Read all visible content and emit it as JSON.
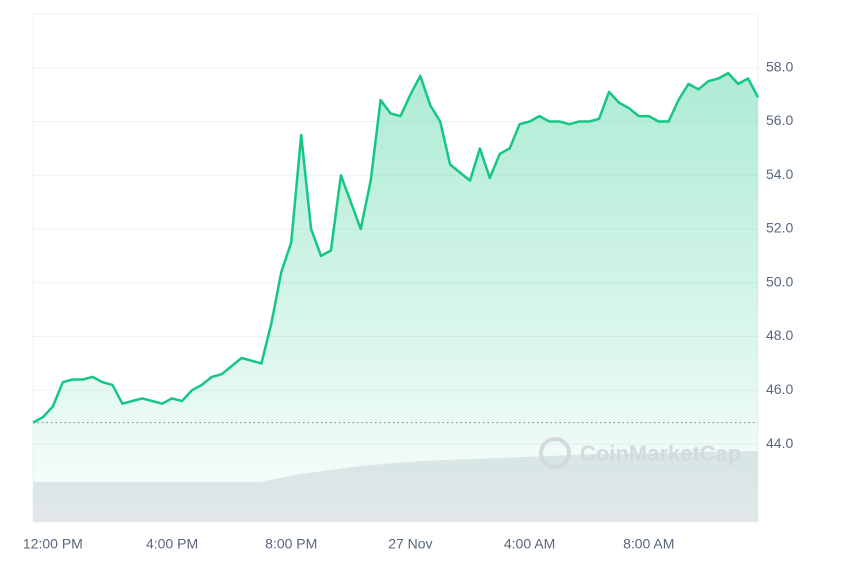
{
  "chart_data": {
    "type": "line",
    "watermark": "CoinMarketCap",
    "categories": [
      null,
      null,
      "12:00 PM",
      null,
      null,
      null,
      null,
      null,
      null,
      null,
      null,
      null,
      null,
      null,
      "4:00 PM",
      null,
      null,
      null,
      null,
      null,
      null,
      null,
      null,
      null,
      null,
      null,
      "8:00 PM",
      null,
      null,
      null,
      null,
      null,
      null,
      null,
      null,
      null,
      null,
      null,
      "27 Nov",
      null,
      null,
      null,
      null,
      null,
      null,
      null,
      null,
      null,
      null,
      null,
      "4:00 AM",
      null,
      null,
      null,
      null,
      null,
      null,
      null,
      null,
      null,
      null,
      null,
      "8:00 AM",
      null,
      null,
      null,
      null,
      null,
      null,
      null,
      null,
      null,
      null,
      null
    ],
    "series": [
      {
        "color": "#16c784",
        "values": [
          44.8,
          45.0,
          45.4,
          46.3,
          46.4,
          46.4,
          46.5,
          46.3,
          46.2,
          45.5,
          45.6,
          45.7,
          45.6,
          45.5,
          45.7,
          45.6,
          46.0,
          46.2,
          46.5,
          46.6,
          46.9,
          47.2,
          47.1,
          47.0,
          48.5,
          50.4,
          51.5,
          55.5,
          52.0,
          51.0,
          51.2,
          54.0,
          53.0,
          52.0,
          53.8,
          56.8,
          56.3,
          56.2,
          57.0,
          57.7,
          56.6,
          56.0,
          54.4,
          54.1,
          53.8,
          55.0,
          53.9,
          54.8,
          55.0,
          55.9,
          56.0,
          56.2,
          56.0,
          56.0,
          55.9,
          56.0,
          56.0,
          56.1,
          57.1,
          56.7,
          56.5,
          56.2,
          56.2,
          56.0,
          56.0,
          56.8,
          57.4,
          57.2,
          57.5,
          57.6,
          57.8,
          57.4,
          57.6,
          56.9
        ]
      }
    ],
    "baseline": 44.8,
    "ylim": [
      41.1,
      60
    ],
    "yticks": [
      {
        "value": 44,
        "label": "44.0"
      },
      {
        "value": 46,
        "label": "46.0"
      },
      {
        "value": 48,
        "label": "48.0"
      },
      {
        "value": 50,
        "label": "50.0"
      },
      {
        "value": 52,
        "label": "52.0"
      },
      {
        "value": 54,
        "label": "54.0"
      },
      {
        "value": 56,
        "label": "56.0"
      },
      {
        "value": 58,
        "label": "58.0"
      }
    ],
    "grid": true
  }
}
